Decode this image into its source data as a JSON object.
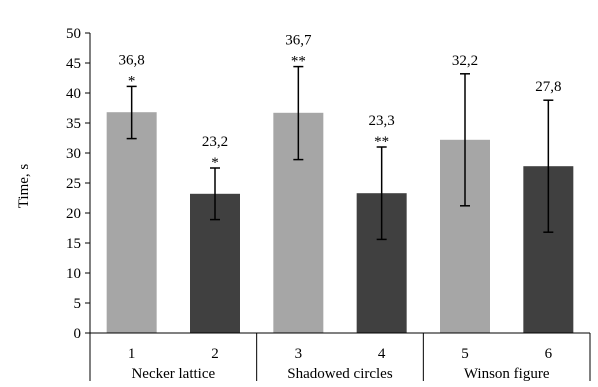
{
  "chart_data": {
    "type": "bar",
    "title": "",
    "xlabel": "",
    "ylabel": "Time, s",
    "ylim": [
      0,
      50
    ],
    "yticks": [
      0,
      5,
      10,
      15,
      20,
      25,
      30,
      35,
      40,
      45,
      50
    ],
    "grid": false,
    "legend": "none",
    "categories": [
      "1",
      "2",
      "3",
      "4",
      "5",
      "6"
    ],
    "groups": [
      {
        "label": "Necker lattice",
        "categories": [
          "1",
          "2"
        ]
      },
      {
        "label": "Shadowed circles",
        "categories": [
          "3",
          "4"
        ]
      },
      {
        "label": "Winson figure",
        "categories": [
          "5",
          "6"
        ]
      }
    ],
    "values": [
      36.8,
      23.2,
      36.7,
      23.3,
      32.2,
      27.8
    ],
    "value_labels": [
      "36,8",
      "23,2",
      "36,7",
      "23,3",
      "32,2",
      "27,8"
    ],
    "error_low": [
      32.4,
      18.9,
      28.9,
      15.6,
      21.2,
      16.8
    ],
    "error_high": [
      41.1,
      27.5,
      44.4,
      31.0,
      43.2,
      38.8
    ],
    "significance": [
      "*",
      "*",
      "**",
      "**",
      "",
      ""
    ],
    "bar_colors": [
      "#a6a6a6",
      "#404040",
      "#a6a6a6",
      "#404040",
      "#a6a6a6",
      "#404040"
    ]
  }
}
